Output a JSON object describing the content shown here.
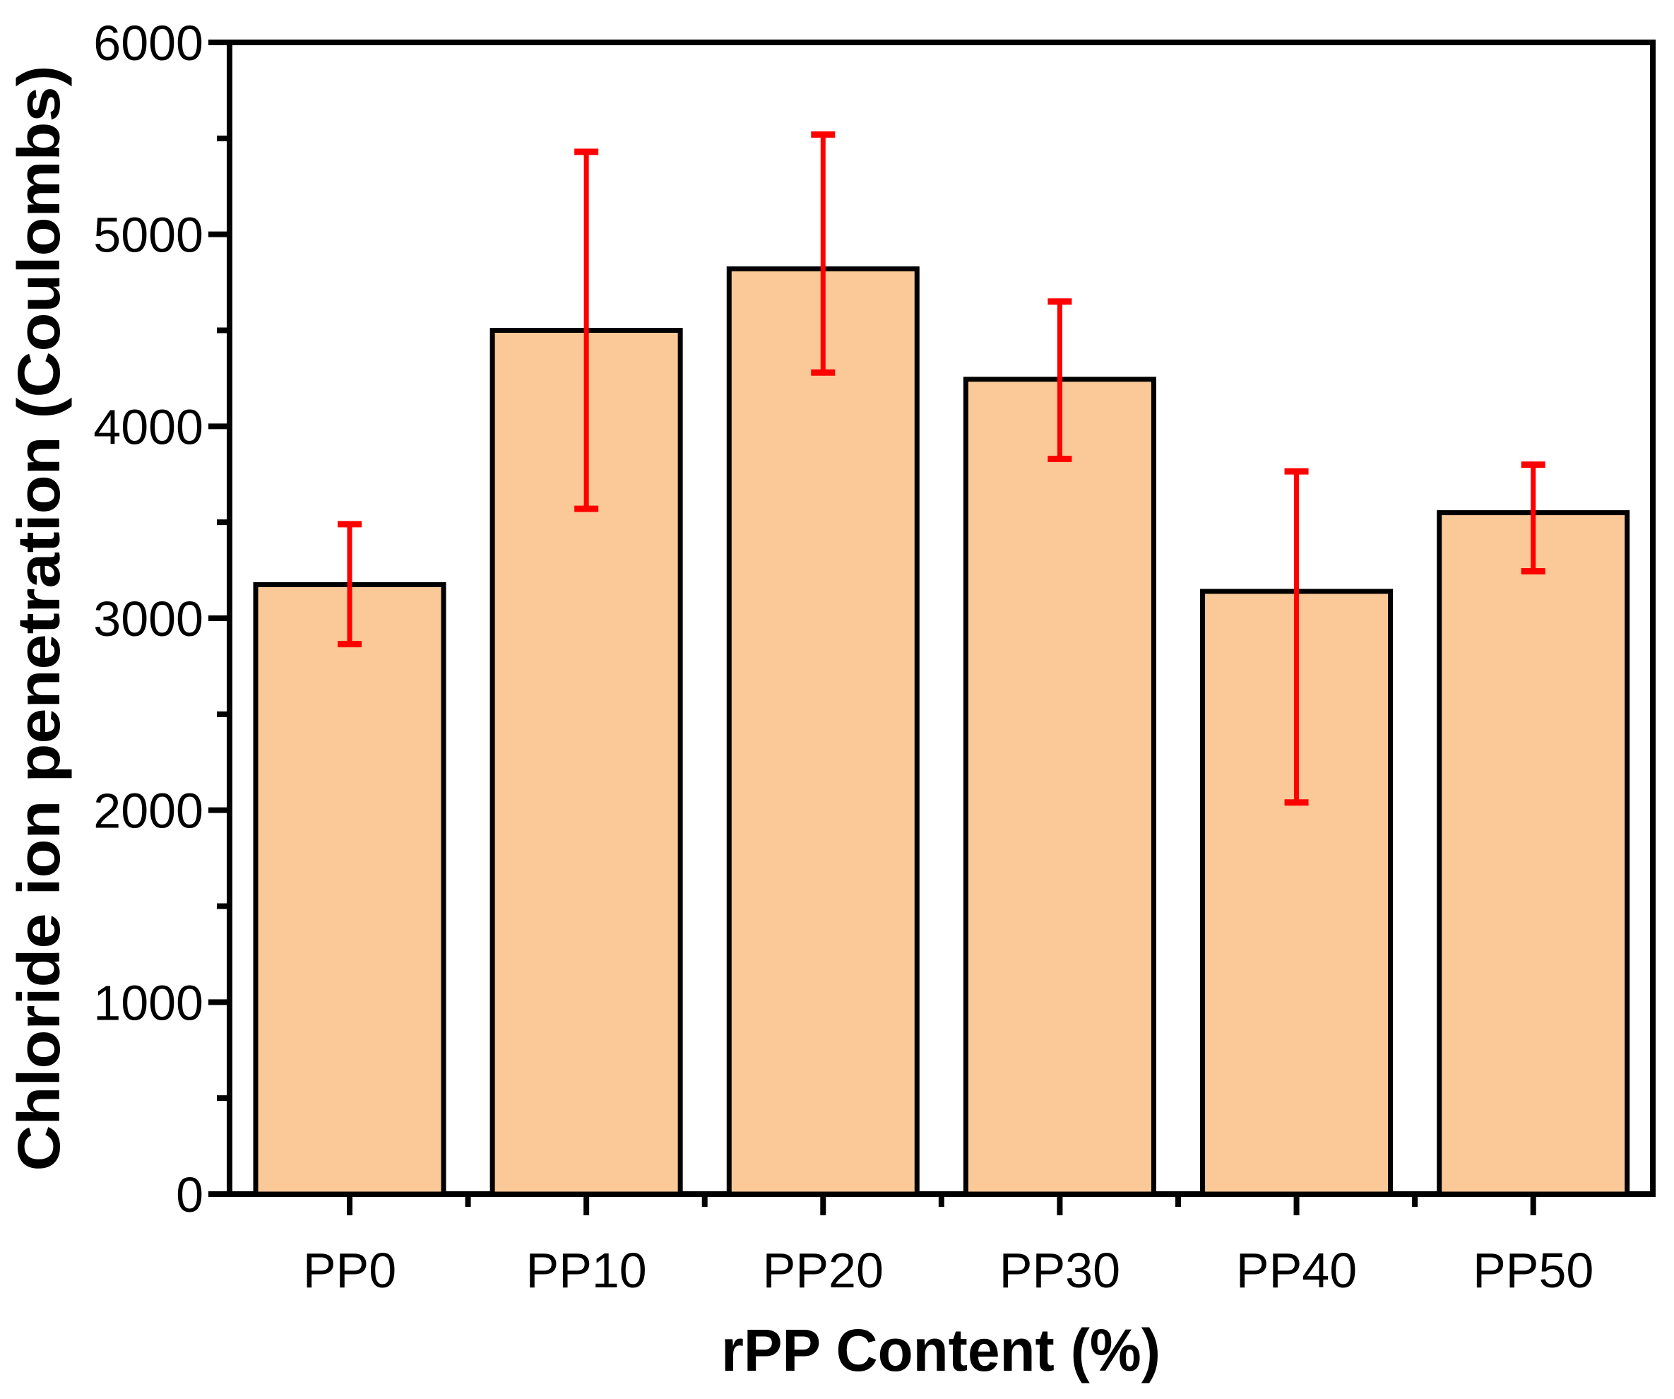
{
  "chart_data": {
    "type": "bar",
    "title": "",
    "xlabel": "rPP Content (%)",
    "ylabel": "Chloride ion penetration (Coulombs)",
    "categories": [
      "PP0",
      "PP10",
      "PP20",
      "PP30",
      "PP40",
      "PP50"
    ],
    "values": [
      3175,
      4500,
      4820,
      4245,
      3140,
      3550
    ],
    "error_upper": [
      3490,
      5430,
      5520,
      4650,
      3765,
      3800
    ],
    "error_lower": [
      2865,
      3570,
      4280,
      3830,
      2040,
      3245
    ],
    "ylim": [
      0,
      6000
    ],
    "y_ticks": [
      {
        "value": 0,
        "label": "0"
      },
      {
        "value": 1000,
        "label": "1000"
      },
      {
        "value": 2000,
        "label": "2000"
      },
      {
        "value": 3000,
        "label": "3000"
      },
      {
        "value": 4000,
        "label": "4000"
      },
      {
        "value": 5000,
        "label": "5000"
      },
      {
        "value": 6000,
        "label": "6000"
      }
    ],
    "y_minor_ticks": [
      500,
      1500,
      2500,
      3500,
      4500,
      5500
    ],
    "grid": false,
    "legend": "none",
    "colors": {
      "bar_fill": "#fbc998",
      "bar_edge": "#000000",
      "error_bar": "#ff0000",
      "axis": "#000000",
      "background": "#ffffff"
    }
  }
}
